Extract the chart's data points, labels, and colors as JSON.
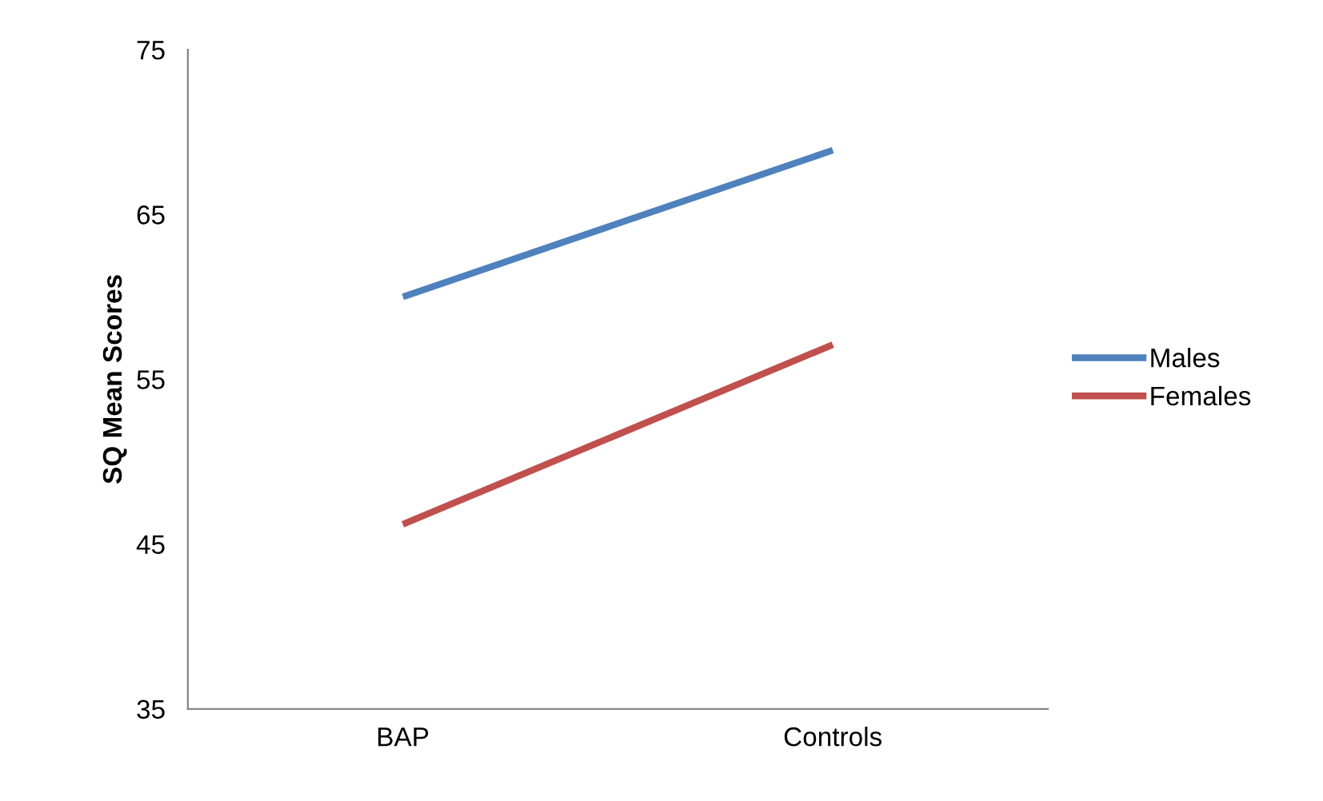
{
  "chart_data": {
    "type": "line",
    "ylabel": "SQ Mean Scores",
    "categories": [
      "BAP",
      "Controls"
    ],
    "series": [
      {
        "name": "Males",
        "color": "#4f81bd",
        "values": [
          60,
          68.9
        ]
      },
      {
        "name": "Females",
        "color": "#c0504d",
        "values": [
          46.2,
          57.1
        ]
      }
    ],
    "ylim": [
      35,
      75
    ],
    "yticks": [
      35,
      45,
      55,
      65,
      75
    ],
    "grid": false,
    "legend": "right",
    "marker": "none",
    "line_style": "solid"
  }
}
